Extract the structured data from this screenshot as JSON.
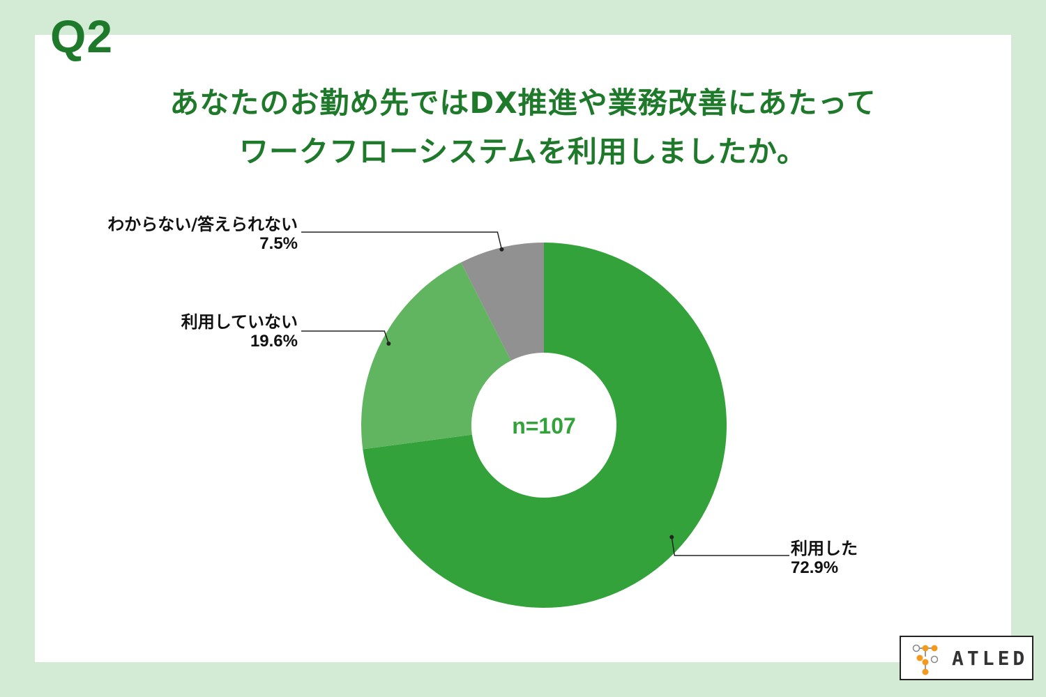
{
  "question": "Q2",
  "title_lines": [
    "あなたのお勤め先ではDX推進や業務改善にあたって",
    "ワークフローシステムを利用しましたか。"
  ],
  "chart_data": {
    "type": "pie",
    "donut": true,
    "center_label": "n=107",
    "slices": [
      {
        "label": "利用した",
        "value": 72.9,
        "value_text": "72.9%",
        "color": "#34a23a"
      },
      {
        "label": "利用していない",
        "value": 19.6,
        "value_text": "19.6%",
        "color": "#62b560"
      },
      {
        "label": "わからない/答えられない",
        "value": 7.5,
        "value_text": "7.5%",
        "color": "#919191"
      }
    ]
  },
  "logo": {
    "text": "ATLED",
    "accent_color": "#f39a1e"
  }
}
